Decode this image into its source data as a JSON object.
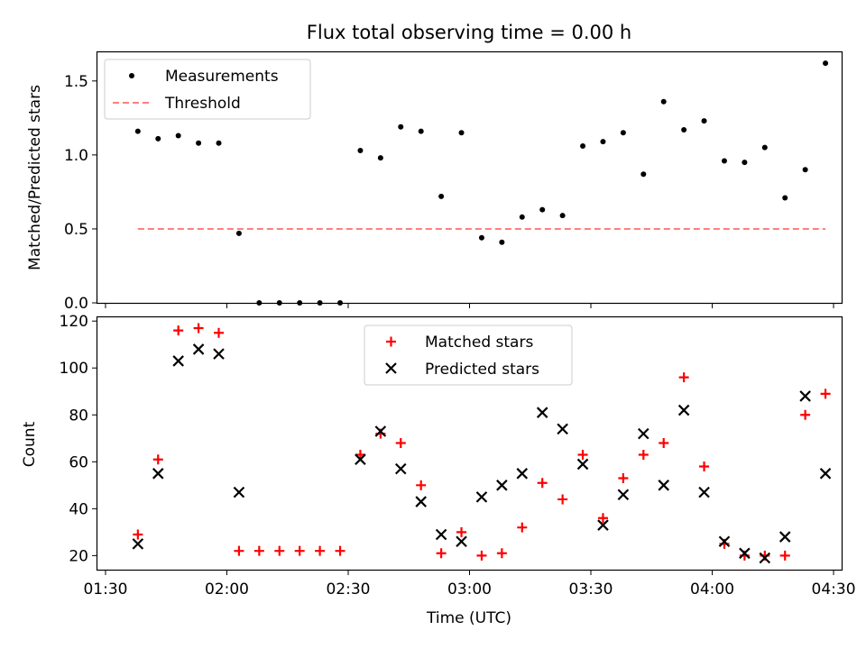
{
  "chart_data": [
    {
      "type": "scatter",
      "title": "Flux total observing time = 0.00 h",
      "xlabel": "",
      "ylabel": "Matched/Predicted stars",
      "xlim": [
        "01:28",
        "04:32"
      ],
      "ylim": [
        0,
        1.7
      ],
      "yticks": [
        0.0,
        0.5,
        1.0,
        1.5
      ],
      "ytick_labels": [
        "0.0",
        "0.5",
        "1.0",
        "1.5"
      ],
      "legend_position": "upper-left",
      "grid": false,
      "series": [
        {
          "name": "Measurements",
          "marker": "dot",
          "color": "#000000",
          "x": [
            "01:38",
            "01:43",
            "01:48",
            "01:53",
            "01:58",
            "02:03",
            "02:08",
            "02:13",
            "02:18",
            "02:23",
            "02:28",
            "02:33",
            "02:38",
            "02:43",
            "02:48",
            "02:53",
            "02:58",
            "03:03",
            "03:08",
            "03:13",
            "03:18",
            "03:23",
            "03:28",
            "03:33",
            "03:38",
            "03:43",
            "03:48",
            "03:53",
            "03:58",
            "04:03",
            "04:08",
            "04:13",
            "04:18",
            "04:23",
            "04:28"
          ],
          "y": [
            1.16,
            1.11,
            1.13,
            1.08,
            1.08,
            0.47,
            0.0,
            0.0,
            0.0,
            0.0,
            0.0,
            1.03,
            0.98,
            1.19,
            1.16,
            0.72,
            1.15,
            0.44,
            0.41,
            0.58,
            0.63,
            0.59,
            1.06,
            1.09,
            1.15,
            0.87,
            1.36,
            1.17,
            1.23,
            0.96,
            0.95,
            1.05,
            0.71,
            0.9,
            1.62
          ]
        },
        {
          "name": "Threshold",
          "style": "dashed",
          "color": "#ff7f7f",
          "x": [
            "01:38",
            "04:28"
          ],
          "y": [
            0.5,
            0.5
          ]
        }
      ]
    },
    {
      "type": "scatter",
      "title": "",
      "xlabel": "Time (UTC)",
      "ylabel": "Count",
      "xlim": [
        "01:28",
        "04:32"
      ],
      "ylim": [
        14,
        122
      ],
      "xticks": [
        "01:30",
        "02:00",
        "02:30",
        "03:00",
        "03:30",
        "04:00",
        "04:30"
      ],
      "yticks": [
        20,
        40,
        60,
        80,
        100,
        120
      ],
      "ytick_labels": [
        "20",
        "40",
        "60",
        "80",
        "100",
        "120"
      ],
      "legend_position": "upper-center",
      "grid": false,
      "series": [
        {
          "name": "Matched stars",
          "marker": "plus",
          "color": "#ff0000",
          "x": [
            "01:38",
            "01:43",
            "01:48",
            "01:53",
            "01:58",
            "02:03",
            "02:08",
            "02:13",
            "02:18",
            "02:23",
            "02:28",
            "02:33",
            "02:38",
            "02:43",
            "02:48",
            "02:53",
            "02:58",
            "03:03",
            "03:08",
            "03:13",
            "03:18",
            "03:23",
            "03:28",
            "03:33",
            "03:38",
            "03:43",
            "03:48",
            "03:53",
            "03:58",
            "04:03",
            "04:08",
            "04:13",
            "04:18",
            "04:23",
            "04:28"
          ],
          "y": [
            29,
            61,
            116,
            117,
            115,
            22,
            22,
            22,
            22,
            22,
            22,
            63,
            72,
            68,
            50,
            21,
            30,
            20,
            21,
            32,
            51,
            44,
            63,
            36,
            53,
            63,
            68,
            96,
            58,
            25,
            20,
            20,
            20,
            80,
            89
          ]
        },
        {
          "name": "Predicted stars",
          "marker": "x",
          "color": "#000000",
          "x": [
            "01:38",
            "01:43",
            "01:48",
            "01:53",
            "01:58",
            "02:03",
            "02:33",
            "02:38",
            "02:43",
            "02:48",
            "02:53",
            "02:58",
            "03:03",
            "03:08",
            "03:13",
            "03:18",
            "03:23",
            "03:28",
            "03:33",
            "03:38",
            "03:43",
            "03:48",
            "03:53",
            "03:58",
            "04:03",
            "04:08",
            "04:13",
            "04:18",
            "04:23",
            "04:28"
          ],
          "y": [
            25,
            55,
            103,
            108,
            106,
            47,
            61,
            73,
            57,
            43,
            29,
            26,
            45,
            50,
            55,
            81,
            74,
            59,
            33,
            46,
            72,
            50,
            82,
            47,
            26,
            21,
            19,
            28,
            88,
            55
          ]
        }
      ]
    }
  ]
}
